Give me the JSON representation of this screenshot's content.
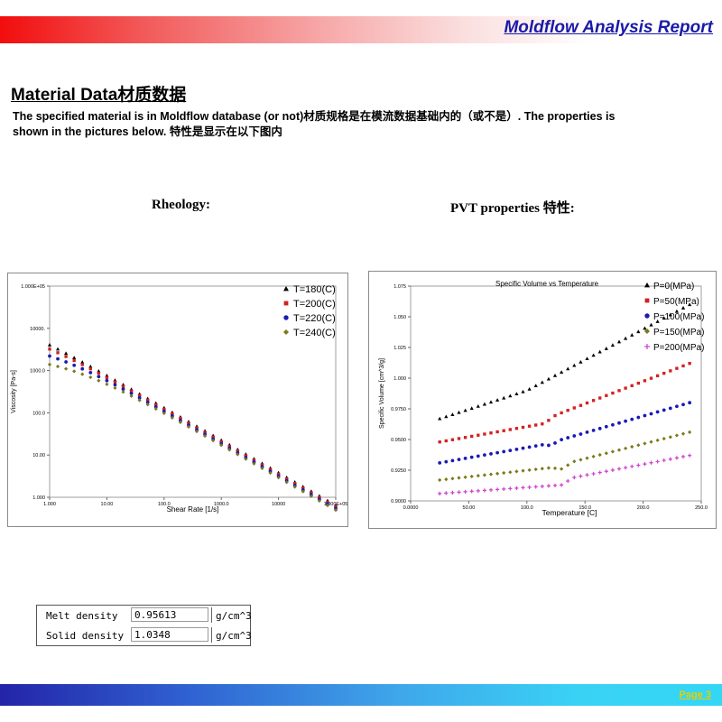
{
  "header": {
    "title": "Moldflow Analysis Report"
  },
  "section": {
    "title": "Material Data材质数据",
    "intro_line1": "The specified material is in Moldflow database (or not)材质规格是在模流数据基础内的（或不是）. The properties is",
    "intro_line2": "shown in the pictures below. 特性是显示在以下图内"
  },
  "subtitles": {
    "rheology": "Rheology:",
    "pvt": "PVT properties  特性:"
  },
  "chart_data": [
    {
      "type": "scatter",
      "name": "rheology",
      "xlabel": "Shear Rate [1/s]",
      "ylabel": "Viscosity [Pa-s]",
      "xscale": "log",
      "yscale": "log",
      "xlim": [
        1,
        100000
      ],
      "ylim": [
        1,
        100000
      ],
      "xticks": [
        "1.000",
        "10.00",
        "100.0",
        "1000.0",
        "10000",
        "1.000E+05"
      ],
      "yticks": [
        "1.000",
        "10.00",
        "100.0",
        "1000.0",
        "10000.",
        "1.000E+05"
      ],
      "legend": "top-right",
      "series": [
        {
          "name": "T=180(C)",
          "color": "#000000",
          "marker": "triangle",
          "eta0": 35000,
          "tau": 2500
        },
        {
          "name": "T=200(C)",
          "color": "#d42020",
          "marker": "square",
          "eta0": 13500,
          "tau": 3000
        },
        {
          "name": "T=220(C)",
          "color": "#1a1ab4",
          "marker": "circle",
          "eta0": 5200,
          "tau": 3500
        },
        {
          "name": "T=240(C)",
          "color": "#7a7a1a",
          "marker": "diamond",
          "eta0": 2300,
          "tau": 4000
        }
      ],
      "n": 0.23,
      "xrange": [
        1,
        100000
      ]
    },
    {
      "type": "scatter",
      "name": "pvt",
      "title": "Specific Volume vs Temperature",
      "xlabel": "Temperature [C]",
      "ylabel": "Specific Volume [cm^3/g]",
      "xlim": [
        0,
        250
      ],
      "ylim": [
        0.9,
        1.075
      ],
      "xticks": [
        0,
        50,
        100,
        150,
        200,
        250
      ],
      "xtick_labels": [
        "0.0000",
        "50.00",
        "100.0",
        "150.0",
        "200.0",
        "250.0"
      ],
      "yticks": [
        0.9,
        0.925,
        0.95,
        0.975,
        1.0,
        1.025,
        1.05,
        1.075
      ],
      "ytick_labels": [
        "0.9000",
        "0.9250",
        "0.9500",
        "0.9750",
        "1.000",
        "1.025",
        "1.050",
        "1.075"
      ],
      "legend": "top-right",
      "series": [
        {
          "name": "P=0(MPa)",
          "color": "#000000",
          "marker": "triangle",
          "points": [
            [
              25,
              0.967
            ],
            [
              100,
              0.99
            ],
            [
              240,
              1.06
            ]
          ]
        },
        {
          "name": "P=50(MPa)",
          "color": "#d42020",
          "marker": "square",
          "points": [
            [
              25,
              0.948
            ],
            [
              115,
              0.963
            ],
            [
              125,
              0.97
            ],
            [
              240,
              1.012
            ]
          ]
        },
        {
          "name": "P=100(MPa)",
          "color": "#1a1ab4",
          "marker": "circle",
          "points": [
            [
              25,
              0.931
            ],
            [
              115,
              0.946
            ],
            [
              120,
              0.945
            ],
            [
              130,
              0.95
            ],
            [
              240,
              0.98
            ]
          ]
        },
        {
          "name": "P=150(MPa)",
          "color": "#7a7a1a",
          "marker": "diamond",
          "points": [
            [
              25,
              0.917
            ],
            [
              120,
              0.927
            ],
            [
              130,
              0.926
            ],
            [
              140,
              0.932
            ],
            [
              240,
              0.956
            ]
          ]
        },
        {
          "name": "P=200(MPa)",
          "color": "#cc44cc",
          "marker": "plus",
          "points": [
            [
              25,
              0.906
            ],
            [
              130,
              0.913
            ],
            [
              140,
              0.919
            ],
            [
              240,
              0.937
            ]
          ]
        }
      ],
      "n_points": 40
    }
  ],
  "properties": {
    "melt_label": "Melt density",
    "melt_value": "0.95613",
    "melt_unit": "g/cm^3",
    "solid_label": "Solid density",
    "solid_value": "1.0348",
    "solid_unit": "g/cm^3"
  },
  "footer": {
    "page": "Page  3"
  }
}
